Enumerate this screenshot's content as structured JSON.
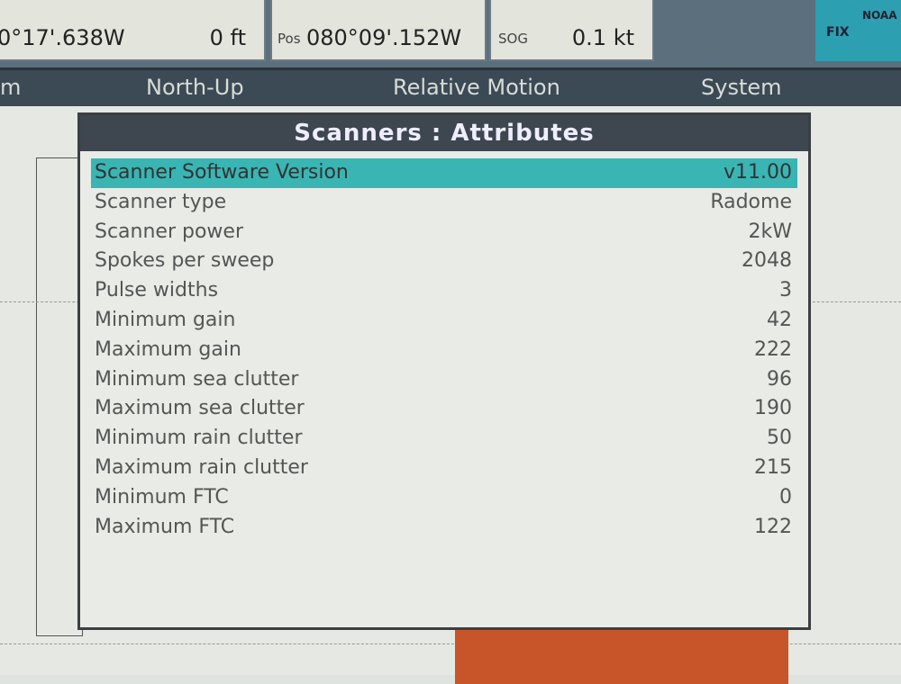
{
  "status": {
    "lon": "0°17'.638W",
    "depth": "0 ft",
    "pos_label": "Pos",
    "pos": "080°09'.152W",
    "sog_label": "SOG",
    "sog": "0.1 kt",
    "fix_label": "FIX",
    "noaa_label": "NOAA"
  },
  "menu": {
    "items": [
      "m",
      "North-Up",
      "Relative Motion",
      "System"
    ]
  },
  "dialog": {
    "title": "Scanners : Attributes",
    "rows": [
      {
        "label": "Scanner Software Version",
        "value": "v11.00"
      },
      {
        "label": "Scanner type",
        "value": "Radome"
      },
      {
        "label": "Scanner power",
        "value": "2kW"
      },
      {
        "label": "Spokes per sweep",
        "value": "2048"
      },
      {
        "label": "Pulse widths",
        "value": "3"
      },
      {
        "label": "Minimum gain",
        "value": "42"
      },
      {
        "label": "Maximum gain",
        "value": "222"
      },
      {
        "label": "Minimum sea clutter",
        "value": "96"
      },
      {
        "label": "Maximum sea clutter",
        "value": "190"
      },
      {
        "label": "Minimum rain clutter",
        "value": "50"
      },
      {
        "label": "Maximum rain clutter",
        "value": "215"
      },
      {
        "label": "Minimum FTC",
        "value": "0"
      },
      {
        "label": "Maximum FTC",
        "value": "122"
      }
    ],
    "selected_index": 0
  },
  "colors": {
    "selection": "#39b5b3",
    "land": "#c8542a",
    "title_bar": "#3e4650"
  }
}
